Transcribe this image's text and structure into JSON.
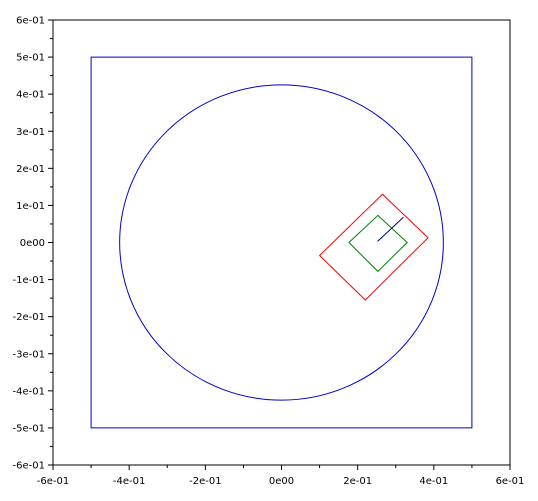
{
  "chart_data": {
    "type": "line",
    "title": "",
    "xlabel": "",
    "ylabel": "",
    "xlim": [
      -0.6,
      0.6
    ],
    "ylim": [
      -0.6,
      0.6
    ],
    "grid": false,
    "x_tick_values": [
      -0.6,
      -0.4,
      -0.2,
      0.0,
      0.2,
      0.4,
      0.6
    ],
    "x_tick_labels": [
      "-6e-01",
      "-4e-01",
      "-2e-01",
      "0e00",
      "2e-01",
      "4e-01",
      "6e-01"
    ],
    "y_tick_values": [
      -0.6,
      -0.5,
      -0.4,
      -0.3,
      -0.2,
      -0.1,
      0.0,
      0.1,
      0.2,
      0.3,
      0.4,
      0.5,
      0.6
    ],
    "y_tick_labels": [
      "-6e-01",
      "-5e-01",
      "-4e-01",
      "-3e-01",
      "-2e-01",
      "-1e-01",
      "0e00",
      "1e-01",
      "2e-01",
      "3e-01",
      "4e-01",
      "5e-01",
      "6e-01"
    ],
    "shapes": [
      {
        "kind": "rect",
        "color": "#0000cc",
        "points": [
          [
            -0.5,
            -0.5
          ],
          [
            0.5,
            -0.5
          ],
          [
            0.5,
            0.5
          ],
          [
            -0.5,
            0.5
          ]
        ],
        "closed": true
      },
      {
        "kind": "circle",
        "color": "#0000cc",
        "center": [
          0.0,
          0.0
        ],
        "radius": 0.425
      },
      {
        "kind": "square",
        "color": "#ff0000",
        "points": [
          [
            0.265,
            0.13
          ],
          [
            0.385,
            0.013
          ],
          [
            0.22,
            -0.155
          ],
          [
            0.1,
            -0.035
          ]
        ],
        "closed": true
      },
      {
        "kind": "square",
        "color": "#008000",
        "points": [
          [
            0.253,
            0.073
          ],
          [
            0.33,
            0.0
          ],
          [
            0.253,
            -0.078
          ],
          [
            0.177,
            0.0
          ]
        ],
        "closed": true
      },
      {
        "kind": "segment",
        "color": "#000080",
        "points": [
          [
            0.252,
            0.003
          ],
          [
            0.32,
            0.068
          ]
        ],
        "closed": false
      }
    ]
  }
}
